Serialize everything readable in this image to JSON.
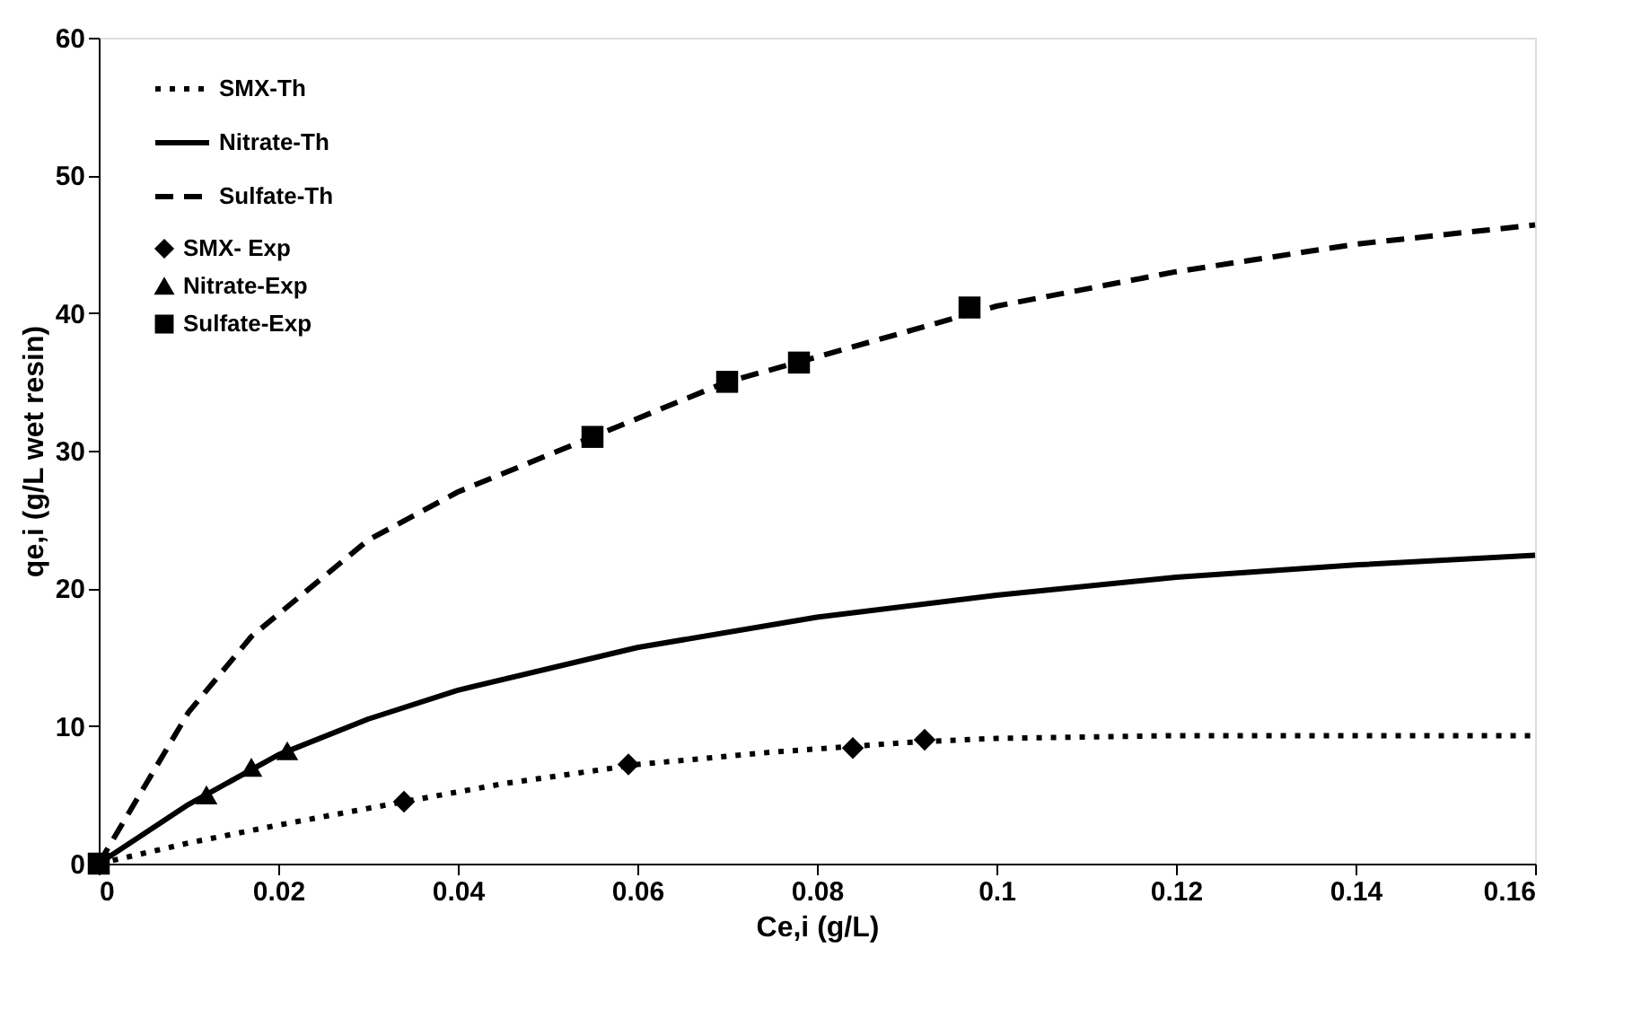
{
  "chart_data": {
    "type": "line",
    "xlabel": "Ce,i (g/L)",
    "ylabel": "qe,i (g/L wet resin)",
    "xlim": [
      0,
      0.16
    ],
    "xticks": [
      0,
      0.02,
      0.04,
      0.06,
      0.08,
      0.1,
      0.12,
      0.14,
      0.16
    ],
    "ylim": [
      0,
      60
    ],
    "yticks": [
      0,
      10,
      20,
      30,
      40,
      50,
      60
    ],
    "grid": false,
    "legend": "top left",
    "series": [
      {
        "name": "SMX-Th",
        "line_style": "dotted",
        "color": "#000000",
        "x": [
          0,
          0.01,
          0.02,
          0.034,
          0.045,
          0.06,
          0.075,
          0.09,
          0.1,
          0.12,
          0.14,
          0.16
        ],
        "values": [
          0,
          1.5,
          2.8,
          4.5,
          5.8,
          7.2,
          8.1,
          8.8,
          9.1,
          9.3,
          9.3,
          9.3
        ]
      },
      {
        "name": "Nitrate-Th",
        "line_style": "solid",
        "color": "#000000",
        "x": [
          0,
          0.01,
          0.02,
          0.03,
          0.04,
          0.06,
          0.08,
          0.1,
          0.12,
          0.14,
          0.16
        ],
        "values": [
          0,
          4.3,
          7.9,
          10.5,
          12.6,
          15.7,
          17.9,
          19.5,
          20.8,
          21.7,
          22.4
        ]
      },
      {
        "name": "Sulfate-Th",
        "line_style": "dashed",
        "color": "#000000",
        "x": [
          0,
          0.01,
          0.017,
          0.03,
          0.04,
          0.055,
          0.07,
          0.08,
          0.1,
          0.12,
          0.14,
          0.16
        ],
        "values": [
          0,
          11,
          16.5,
          23.5,
          27,
          31,
          35,
          36.8,
          40.5,
          43,
          45,
          46.4
        ]
      },
      {
        "name": "SMX- Exp",
        "type": "scatter",
        "marker": "diamond",
        "color": "#000000",
        "x": [
          0.034,
          0.059,
          0.084,
          0.092
        ],
        "values": [
          4.5,
          7.2,
          8.4,
          9.0
        ]
      },
      {
        "name": "Nitrate-Exp",
        "type": "scatter",
        "marker": "triangle",
        "color": "#000000",
        "x": [
          0.012,
          0.017,
          0.021
        ],
        "values": [
          5,
          7,
          8.2
        ]
      },
      {
        "name": "Sulfate-Exp",
        "type": "scatter",
        "marker": "square",
        "color": "#000000",
        "x": [
          0,
          0.055,
          0.07,
          0.078,
          0.097
        ],
        "values": [
          0,
          31,
          35,
          36.4,
          40.4
        ]
      }
    ]
  }
}
